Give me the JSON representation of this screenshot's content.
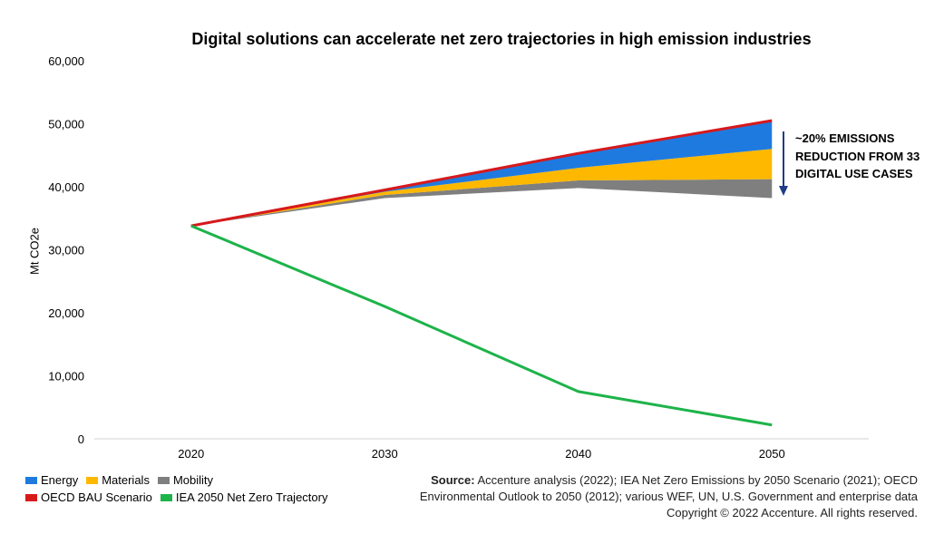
{
  "chart_data": {
    "type": "area",
    "title": "Digital solutions can accelerate net zero trajectories in high emission industries",
    "xlabel": "",
    "ylabel": "Mt CO2e",
    "x": [
      2020,
      2030,
      2040,
      2050
    ],
    "xlim": [
      2015,
      2055
    ],
    "ylim": [
      0,
      60000
    ],
    "yticks": [
      "0",
      "10,000",
      "20,000",
      "30,000",
      "40,000",
      "50,000",
      "60,000"
    ],
    "xticks": [
      "2020",
      "2030",
      "2040",
      "2050"
    ],
    "grid": false,
    "legend_position": "bottom-left",
    "series": [
      {
        "name": "OECD BAU Scenario",
        "kind": "line",
        "color": "#d7191c",
        "values": [
          33800,
          39500,
          45300,
          50500
        ]
      },
      {
        "name": "Mobility",
        "kind": "stacked-area",
        "color": "#7f7f7f",
        "base": [
          33800,
          38200,
          39800,
          38200
        ],
        "values": [
          33800,
          38700,
          41000,
          41200
        ]
      },
      {
        "name": "Materials",
        "kind": "stacked-area",
        "color": "#ffb800",
        "base": [
          33800,
          38700,
          41000,
          41200
        ],
        "values": [
          33800,
          39200,
          43000,
          46000
        ]
      },
      {
        "name": "Energy",
        "kind": "stacked-area",
        "color": "#1f7ae0",
        "base": [
          33800,
          39200,
          43000,
          46000
        ],
        "values": [
          33800,
          39500,
          45300,
          50500
        ]
      },
      {
        "name": "IEA 2050 Net Zero Trajectory",
        "kind": "line",
        "color": "#1db34a",
        "values": [
          33800,
          21000,
          7500,
          2200
        ]
      }
    ],
    "annotation": "~20% EMISSIONS REDUCTION FROM 33 DIGITAL USE CASES"
  },
  "legend": {
    "row1": [
      {
        "label": "Energy",
        "color": "#1f7ae0"
      },
      {
        "label": "Materials",
        "color": "#ffb800"
      },
      {
        "label": "Mobility",
        "color": "#7f7f7f"
      }
    ],
    "row2": [
      {
        "label": "OECD BAU Scenario",
        "color": "#d7191c"
      },
      {
        "label": "IEA 2050 Net Zero Trajectory",
        "color": "#1db34a"
      }
    ]
  },
  "source": {
    "prefix": "Source:",
    "line1": "Accenture analysis (2022); IEA Net Zero Emissions by 2050 Scenario (2021); OECD",
    "line2": "Environmental Outlook to 2050 (2012); various WEF, UN, U.S. Government and enterprise data",
    "line3": "Copyright © 2022 Accenture. All rights reserved."
  },
  "arrow_color": "#1f3c88"
}
